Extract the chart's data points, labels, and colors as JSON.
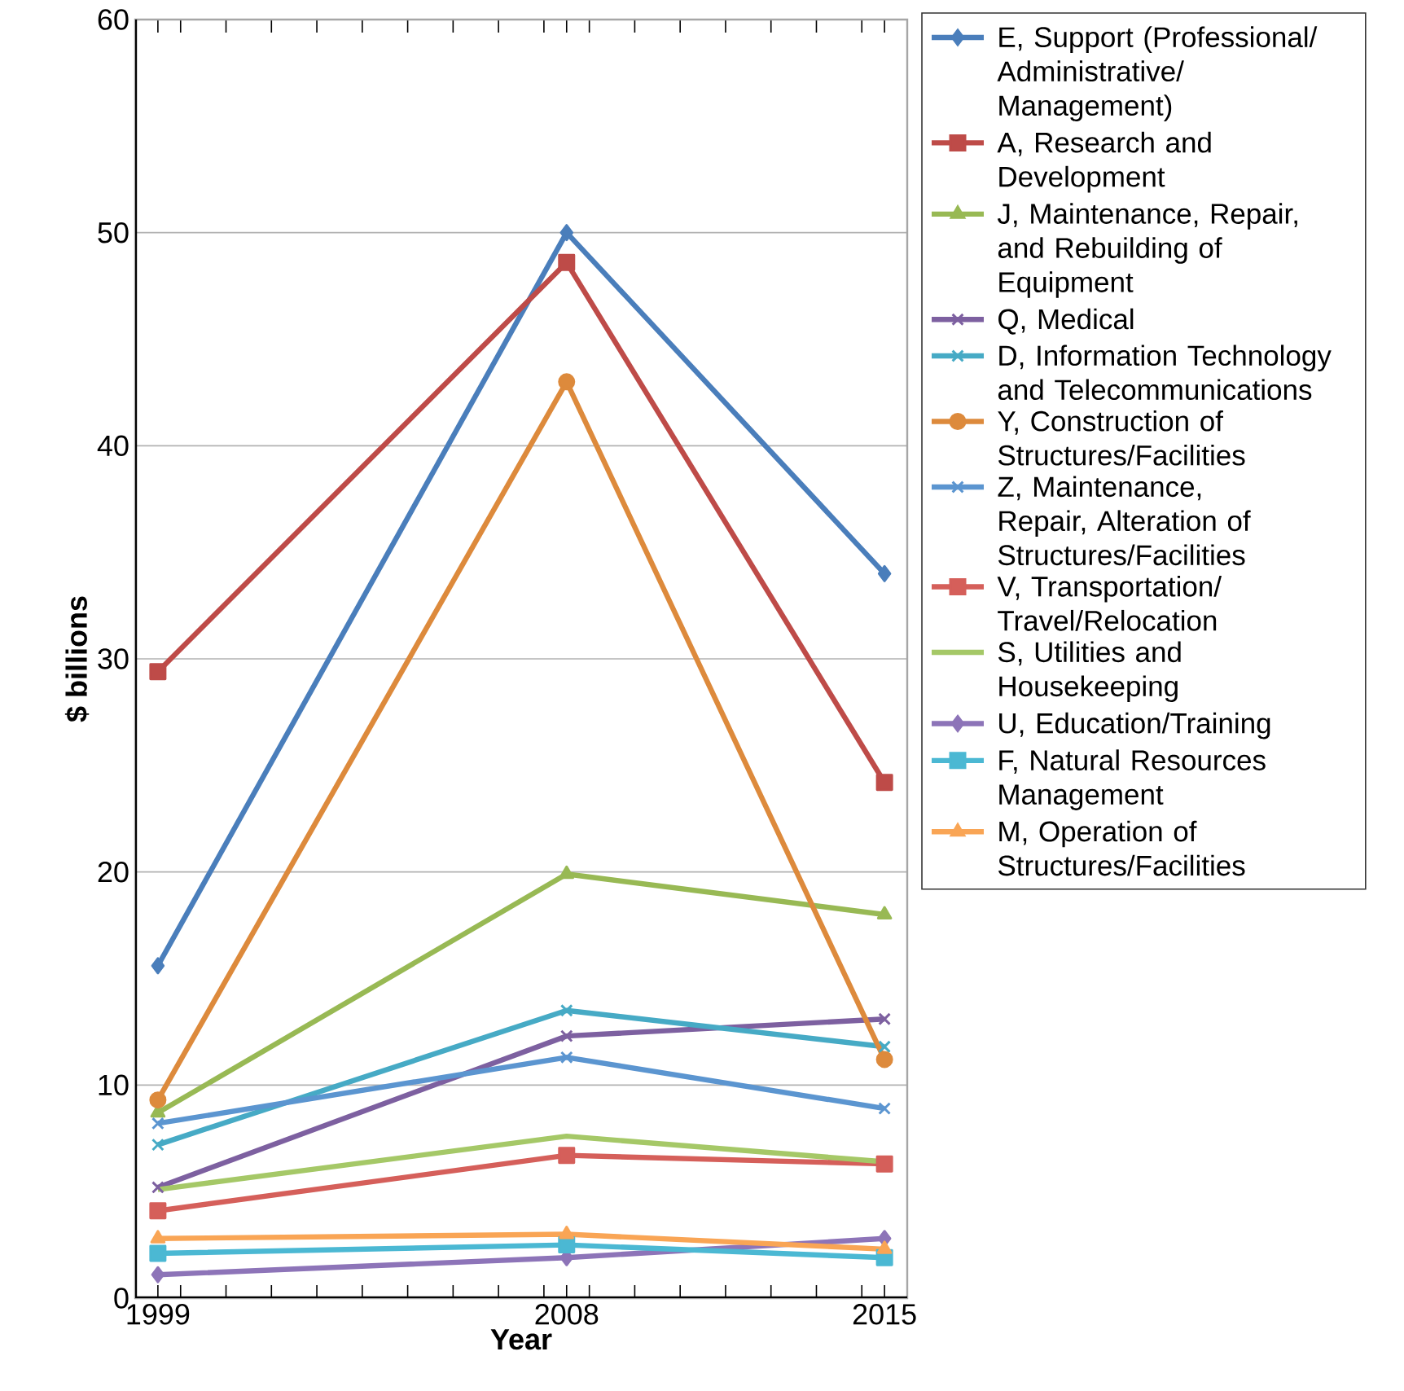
{
  "chart_data": {
    "type": "line",
    "xlabel": "Year",
    "ylabel": "$ billions",
    "x": [
      1999,
      2008,
      2015
    ],
    "xlim": [
      1998.5,
      2015.5
    ],
    "xticks": [
      1999,
      2008,
      2015,
      {
        "value": 1999.5,
        "label": null
      },
      {
        "value": 2000.5,
        "label": null
      },
      {
        "value": 2001.5,
        "label": null
      },
      {
        "value": 2002.5,
        "label": null
      },
      {
        "value": 2003.5,
        "label": null
      },
      {
        "value": 2004.5,
        "label": null
      },
      {
        "value": 2005.5,
        "label": null
      },
      {
        "value": 2006.5,
        "label": null
      },
      {
        "value": 2007.5,
        "label": null
      },
      {
        "value": 2008.5,
        "label": null
      },
      {
        "value": 2009.5,
        "label": null
      },
      {
        "value": 2010.5,
        "label": null
      },
      {
        "value": 2011.5,
        "label": null
      },
      {
        "value": 2012.5,
        "label": null
      },
      {
        "value": 2013.5,
        "label": null
      },
      {
        "value": 2014.5,
        "label": null
      }
    ],
    "ylim": [
      0,
      60
    ],
    "yticks": [
      0,
      10,
      20,
      30,
      40,
      50,
      60
    ],
    "grid": "y",
    "legend": "right",
    "series": [
      {
        "name": "E, Support (Professional/ Administrative/ Management)",
        "color": "#4a7ebb",
        "marker": "diamond",
        "values": [
          15.6,
          50.0,
          34.0
        ]
      },
      {
        "name": "A, Research and Development",
        "color": "#be4b48",
        "marker": "square",
        "values": [
          29.4,
          48.6,
          24.2
        ]
      },
      {
        "name": "J, Maintenance, Repair, and Rebuilding of Equipment",
        "color": "#98b954",
        "marker": "triangle",
        "values": [
          8.7,
          19.9,
          18.0
        ]
      },
      {
        "name": "Q, Medical",
        "color": "#7d60a0",
        "marker": "cross",
        "values": [
          5.2,
          12.3,
          13.1
        ]
      },
      {
        "name": "D, Information Technology and Telecommunications",
        "color": "#46aac5",
        "marker": "cross",
        "values": [
          7.2,
          13.5,
          11.8
        ]
      },
      {
        "name": "Y, Construction of Structures/Facilities",
        "color": "#dd8a3c",
        "marker": "circle",
        "values": [
          9.3,
          43.0,
          11.2
        ]
      },
      {
        "name": "Z, Maintenance, Repair, Alteration of Structures/Facilities",
        "color": "#5b95d0",
        "marker": "cross",
        "values": [
          8.2,
          11.3,
          8.9
        ]
      },
      {
        "name": "V, Transportation/ Travel/Relocation",
        "color": "#d55f5a",
        "marker": "square",
        "values": [
          4.1,
          6.7,
          6.3
        ]
      },
      {
        "name": "S, Utilities and Housekeeping",
        "color": "#a5c867",
        "marker": "none",
        "values": [
          5.1,
          7.6,
          6.4
        ]
      },
      {
        "name": "U, Education/Training",
        "color": "#8d74b8",
        "marker": "diamond",
        "values": [
          1.1,
          1.9,
          2.8
        ]
      },
      {
        "name": "F, Natural Resources Management",
        "color": "#4bb8d3",
        "marker": "square",
        "values": [
          2.1,
          2.5,
          1.9
        ]
      },
      {
        "name": "M, Operation of Structures/Facilities",
        "color": "#f9a555",
        "marker": "triangle",
        "values": [
          2.8,
          3.0,
          2.3
        ]
      }
    ]
  }
}
